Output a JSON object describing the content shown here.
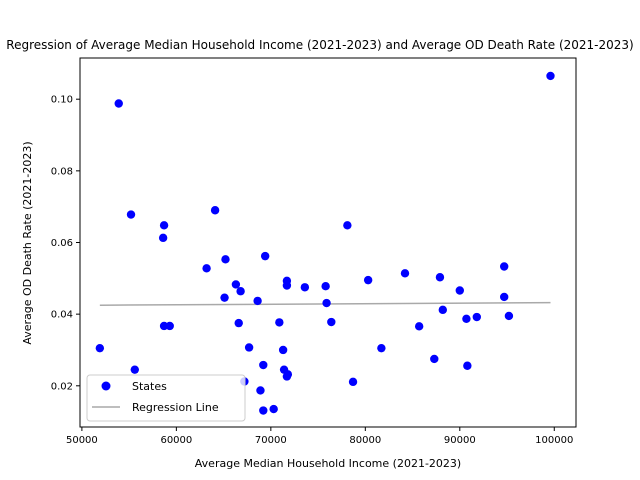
{
  "chart_data": {
    "type": "scatter",
    "title": "Regression of Average Median Household Income (2021-2023) and Average OD Death Rate (2021-2023)",
    "xlabel": "Average Median Household Income (2021-2023)",
    "ylabel": "Average OD Death Rate (2021-2023)",
    "xlim": [
      49800,
      102300
    ],
    "ylim": [
      0.0085,
      0.1115
    ],
    "x_ticks": [
      50000,
      60000,
      70000,
      80000,
      90000,
      100000
    ],
    "x_tick_labels": [
      "50000",
      "60000",
      "70000",
      "80000",
      "90000",
      "100000"
    ],
    "y_ticks": [
      0.02,
      0.04,
      0.06,
      0.08,
      0.1
    ],
    "y_tick_labels": [
      "0.02",
      "0.04",
      "0.06",
      "0.08",
      "0.10"
    ],
    "grid": false,
    "legend": {
      "placement": "lower-left",
      "entries": [
        "States",
        "Regression Line"
      ]
    },
    "colors": {
      "points": "#0000ff",
      "regression": "#a9a9a9"
    },
    "series": [
      {
        "name": "States",
        "kind": "scatter",
        "points": [
          [
            51900,
            0.0305
          ],
          [
            53900,
            0.0988
          ],
          [
            55200,
            0.0678
          ],
          [
            55600,
            0.0245
          ],
          [
            58600,
            0.0613
          ],
          [
            58700,
            0.0648
          ],
          [
            58700,
            0.0367
          ],
          [
            59300,
            0.0367
          ],
          [
            63200,
            0.0528
          ],
          [
            64100,
            0.069
          ],
          [
            65200,
            0.0553
          ],
          [
            65100,
            0.0446
          ],
          [
            66300,
            0.0483
          ],
          [
            66800,
            0.0464
          ],
          [
            66600,
            0.0375
          ],
          [
            67200,
            0.0212
          ],
          [
            67700,
            0.0307
          ],
          [
            68600,
            0.0437
          ],
          [
            68900,
            0.0187
          ],
          [
            69200,
            0.0258
          ],
          [
            69400,
            0.0562
          ],
          [
            69200,
            0.0131
          ],
          [
            70300,
            0.0135
          ],
          [
            70900,
            0.0377
          ],
          [
            71300,
            0.03
          ],
          [
            71400,
            0.0245
          ],
          [
            71700,
            0.0493
          ],
          [
            71700,
            0.048
          ],
          [
            71700,
            0.0226
          ],
          [
            71800,
            0.0232
          ],
          [
            73600,
            0.0475
          ],
          [
            75800,
            0.0478
          ],
          [
            75900,
            0.0431
          ],
          [
            76400,
            0.0378
          ],
          [
            78100,
            0.0648
          ],
          [
            78700,
            0.0211
          ],
          [
            80300,
            0.0495
          ],
          [
            81700,
            0.0305
          ],
          [
            84200,
            0.0514
          ],
          [
            85700,
            0.0366
          ],
          [
            87300,
            0.0275
          ],
          [
            87900,
            0.0503
          ],
          [
            88200,
            0.0412
          ],
          [
            90000,
            0.0466
          ],
          [
            90700,
            0.0387
          ],
          [
            90800,
            0.0256
          ],
          [
            91800,
            0.0392
          ],
          [
            94700,
            0.0533
          ],
          [
            94700,
            0.0448
          ],
          [
            95200,
            0.0395
          ],
          [
            99600,
            0.1065
          ]
        ]
      },
      {
        "name": "Regression Line",
        "kind": "line",
        "points": [
          [
            51900,
            0.0425
          ],
          [
            99600,
            0.0432
          ]
        ]
      }
    ]
  }
}
